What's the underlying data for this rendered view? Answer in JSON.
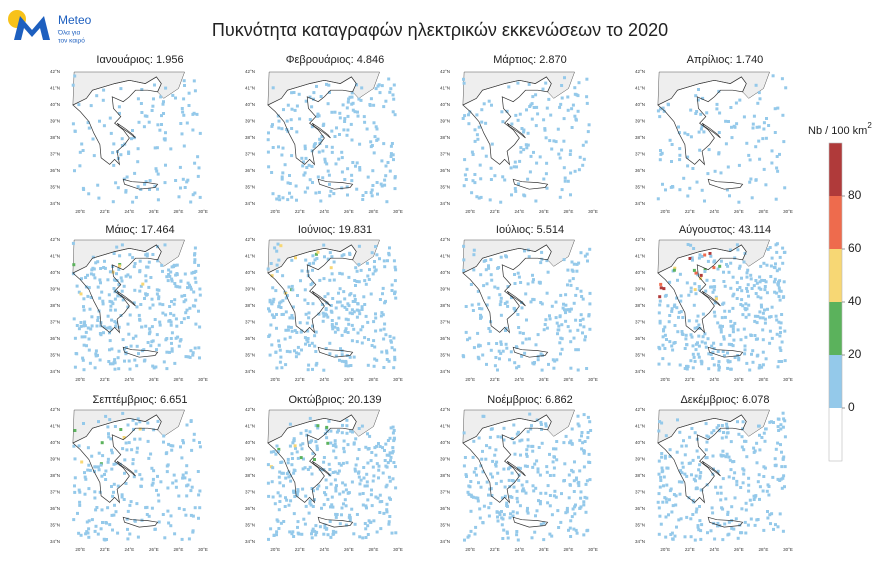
{
  "logo": {
    "name": "Meteo",
    "tagline": [
      "Όλα για",
      "τον καιρό"
    ]
  },
  "title": "Πυκνότητα καταγραφών ηλεκτρικών εκκενώσεων  το 2020",
  "panels": [
    {
      "title": "Ιανουάριος: 1.956"
    },
    {
      "title": "Φεβρουάριος: 4.846"
    },
    {
      "title": "Μάρτιος: 2.870"
    },
    {
      "title": "Απρίλιος: 1.740"
    },
    {
      "title": "Μάιος: 17.464"
    },
    {
      "title": "Ιούνιος: 19.831"
    },
    {
      "title": "Ιούλιος: 5.514"
    },
    {
      "title": "Αύγουστος: 43.114"
    },
    {
      "title": "Σεπτέμβριος: 6.651"
    },
    {
      "title": "Οκτώβριος: 20.139"
    },
    {
      "title": "Νοέμβριος: 6.862"
    },
    {
      "title": "Δεκέμβριος: 6.078"
    }
  ],
  "lat_labels": [
    "42°N",
    "41°N",
    "40°N",
    "39°N",
    "38°N",
    "37°N",
    "36°N",
    "35°N",
    "34°N"
  ],
  "lon_labels": [
    "20°E",
    "22°E",
    "24°E",
    "26°E",
    "28°E",
    "30°E"
  ],
  "colorbar": {
    "label": "Nb / 100 km",
    "superscript": "2",
    "colors": [
      "#ffffff",
      "#94c9ea",
      "#5bb25c",
      "#f7d774",
      "#ee6b4d",
      "#b03a3a"
    ],
    "ticks": [
      0,
      20,
      40,
      60,
      80
    ]
  }
}
